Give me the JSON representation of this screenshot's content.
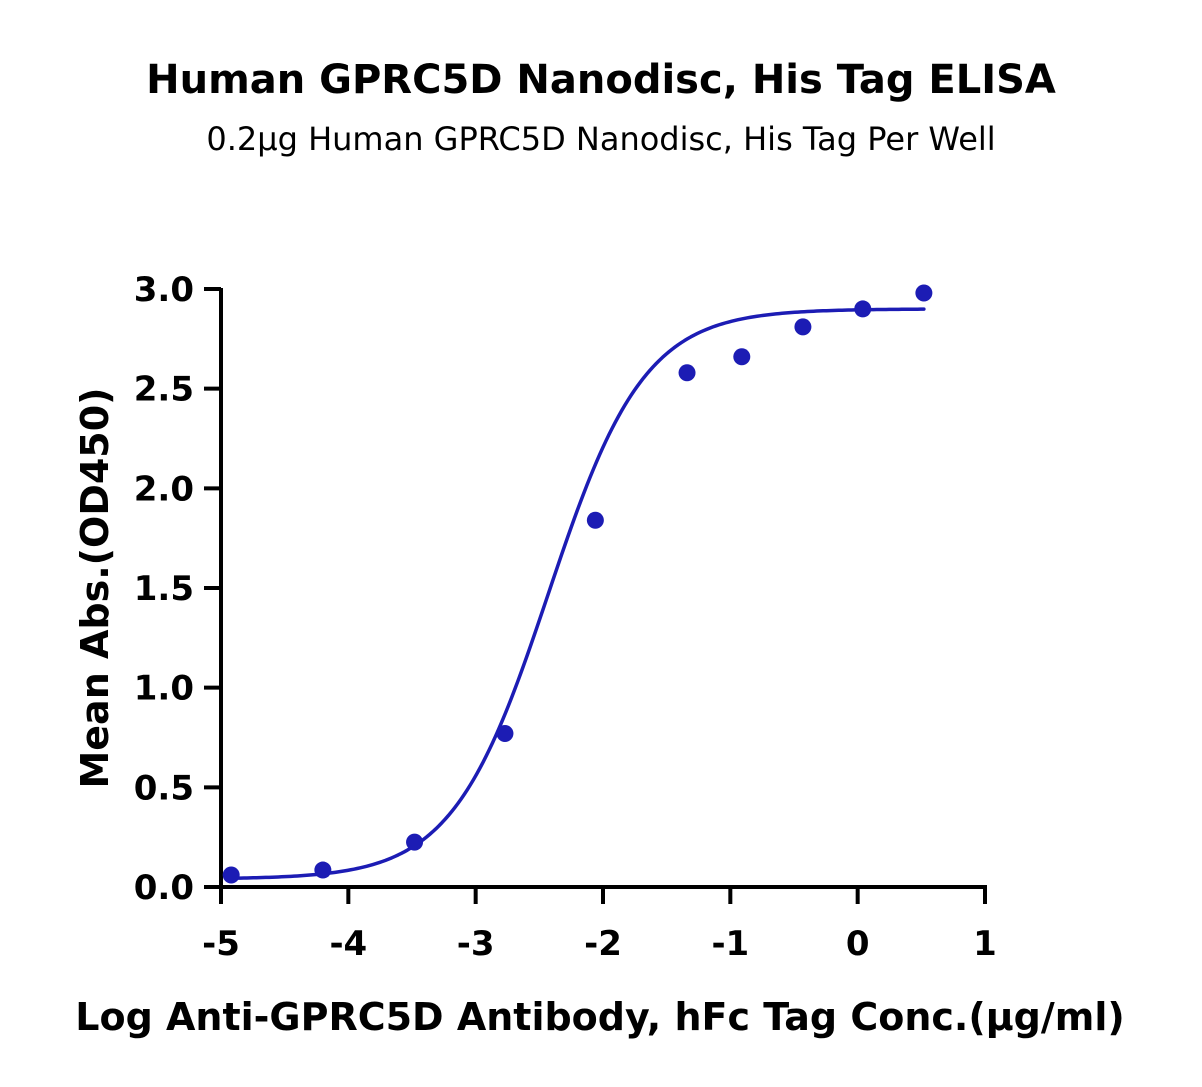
{
  "chart_data": {
    "type": "scatter",
    "title": "Human GPRC5D Nanodisc, His Tag ELISA",
    "subtitle": "0.2µg Human GPRC5D Nanodisc, His Tag Per Well",
    "xlabel": "Log Anti-GPRC5D Antibody, hFc Tag Conc.(µg/ml)",
    "ylabel": "Mean Abs.(OD450)",
    "xlim": [
      -5,
      1
    ],
    "ylim": [
      0,
      3
    ],
    "x_ticks": [
      "-5",
      "-4",
      "-3",
      "-2",
      "-1",
      "0",
      "1"
    ],
    "y_ticks": [
      "0.0",
      "0.5",
      "1.0",
      "1.5",
      "2.0",
      "2.5",
      "3.0"
    ],
    "grid": false,
    "legend": "none",
    "colors": {
      "series": "#1c1cb4"
    },
    "points": {
      "x": [
        -4.92,
        -4.2,
        -3.48,
        -2.77,
        -2.06,
        -1.34,
        -0.91,
        -0.43,
        0.04,
        0.52
      ],
      "y": [
        0.06,
        0.085,
        0.225,
        0.77,
        1.84,
        2.58,
        2.66,
        2.81,
        2.9,
        2.98
      ]
    },
    "fit": {
      "model": "4PL",
      "bottom": 0.04,
      "top": 2.9,
      "log_ec50": -2.43,
      "hill_slope": 1.15,
      "x_range": [
        -4.92,
        0.52
      ]
    }
  }
}
